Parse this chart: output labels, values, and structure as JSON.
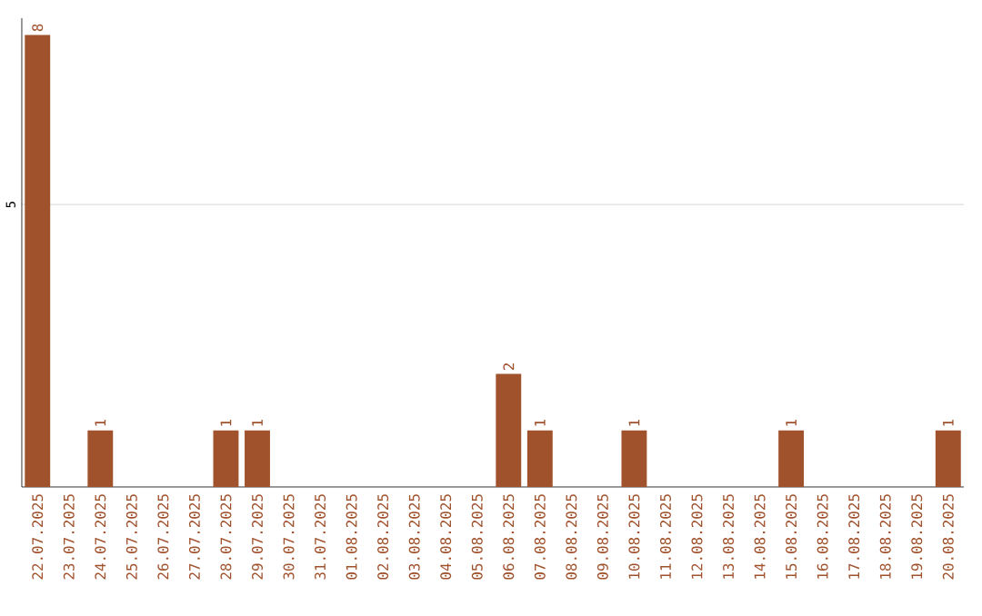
{
  "chart_data": {
    "type": "bar",
    "categories": [
      "22.07.2025",
      "23.07.2025",
      "24.07.2025",
      "25.07.2025",
      "26.07.2025",
      "27.07.2025",
      "28.07.2025",
      "29.07.2025",
      "30.07.2025",
      "31.07.2025",
      "01.08.2025",
      "02.08.2025",
      "03.08.2025",
      "04.08.2025",
      "05.08.2025",
      "06.08.2025",
      "07.08.2025",
      "08.08.2025",
      "09.08.2025",
      "10.08.2025",
      "11.08.2025",
      "12.08.2025",
      "13.08.2025",
      "14.08.2025",
      "15.08.2025",
      "16.08.2025",
      "17.08.2025",
      "18.08.2025",
      "19.08.2025",
      "20.08.2025"
    ],
    "values": [
      8,
      0,
      1,
      0,
      0,
      0,
      1,
      1,
      0,
      0,
      0,
      0,
      0,
      0,
      0,
      2,
      1,
      0,
      0,
      1,
      0,
      0,
      0,
      0,
      1,
      0,
      0,
      0,
      0,
      1
    ],
    "value_labels": [
      "8",
      null,
      "1",
      null,
      null,
      null,
      "1",
      "1",
      null,
      null,
      null,
      null,
      null,
      null,
      null,
      "2",
      "1",
      null,
      null,
      "1",
      null,
      null,
      null,
      null,
      "1",
      null,
      null,
      null,
      null,
      "1"
    ],
    "color": "#a0522d",
    "ylim": [
      0,
      8.3
    ],
    "yticks": [
      5
    ],
    "grid": "y"
  }
}
